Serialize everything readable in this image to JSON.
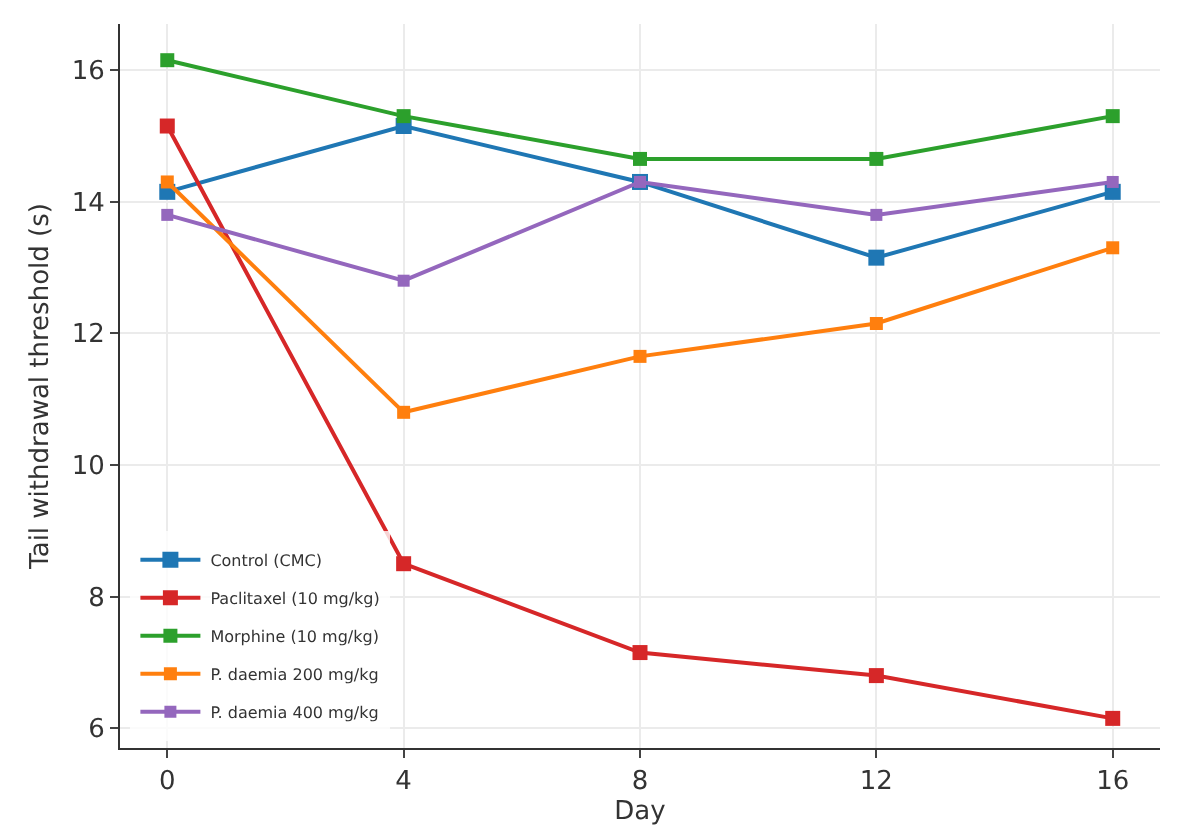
{
  "chart_data": {
    "type": "line",
    "xlabel": "Day",
    "ylabel": "Tail withdrawal threshold (s)",
    "x": [
      0,
      4,
      8,
      12,
      16
    ],
    "series": [
      {
        "name": "Control (CMC)",
        "color": "#1f77b4",
        "values": [
          14.15,
          15.15,
          14.3,
          13.15,
          14.15
        ]
      },
      {
        "name": "Paclitaxel (10 mg/kg)",
        "color": "#d62728",
        "values": [
          15.15,
          8.5,
          7.15,
          6.8,
          6.15
        ]
      },
      {
        "name": "Morphine (10 mg/kg)",
        "color": "#2ca02c",
        "values": [
          16.15,
          15.3,
          14.65,
          14.65,
          15.3
        ]
      },
      {
        "name": "P. daemia 200 mg/kg",
        "color": "#ff7f0e",
        "values": [
          14.3,
          10.8,
          11.65,
          12.15,
          13.3
        ]
      },
      {
        "name": "P. daemia 400 mg/kg",
        "color": "#9467bd",
        "values": [
          13.8,
          12.8,
          14.3,
          13.8,
          14.3
        ]
      }
    ],
    "xlim": [
      -0.8,
      16.8
    ],
    "xticks": [
      0,
      4,
      8,
      12,
      16
    ],
    "ylim": [
      5.7,
      16.7
    ],
    "yticks": [
      6,
      8,
      10,
      12,
      14,
      16
    ],
    "grid": true,
    "legend": "bottom left",
    "marker": "square",
    "line_style": "solid"
  }
}
